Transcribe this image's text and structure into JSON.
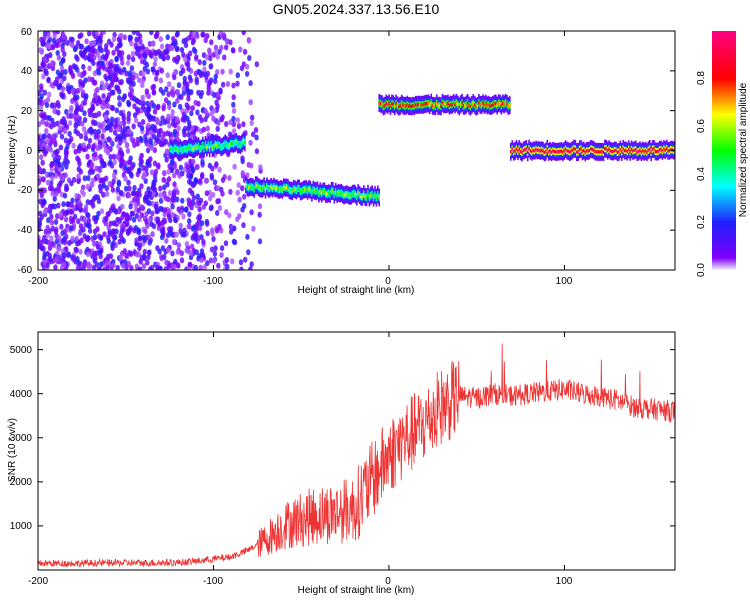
{
  "figure": {
    "title": "GN05.2024.337.13.56.E10"
  },
  "chart_data": [
    {
      "type": "heatmap",
      "xlabel": "Height of straight line (km)",
      "ylabel": "Frequency (Hz)",
      "xlim": [
        -200,
        163
      ],
      "ylim": [
        -60,
        60
      ],
      "xticks": [
        -200,
        -100,
        0,
        100
      ],
      "yticks": [
        -60,
        -40,
        -20,
        0,
        20,
        40,
        60
      ],
      "colorbar": {
        "label": "Normalized spectral amplitude",
        "range": [
          0,
          1
        ],
        "ticks": [
          "0.0",
          "0.2",
          "0.4",
          "0.6",
          "0.8"
        ],
        "colormap": "rainbow (magenta-violet-blue-cyan-green-yellow-red-pink)"
      },
      "segments": [
        {
          "x_start": -200,
          "x_end": -125,
          "freq": 0,
          "note": "broadband noise, amplitude ~0.05-0.2"
        },
        {
          "x_start": -125,
          "x_end": -82,
          "freq_start": 0,
          "freq_end": 4,
          "amplitude": 0.5
        },
        {
          "x_start": -82,
          "x_end": -6,
          "freq_start": -18,
          "freq_end": -23,
          "amplitude": 0.55
        },
        {
          "x_start": -6,
          "x_end": 69,
          "freq": 23,
          "amplitude": 0.75
        },
        {
          "x_start": 69,
          "x_end": 163,
          "freq": 0,
          "amplitude": 0.9
        }
      ],
      "grid": false
    },
    {
      "type": "line",
      "xlabel": "Height of straight line (km)",
      "ylabel": "SNR (10 * v/v)",
      "xlim": [
        -200,
        163
      ],
      "ylim": [
        0,
        5400
      ],
      "xticks": [
        -200,
        -100,
        0,
        100
      ],
      "yticks": [
        1000,
        2000,
        3000,
        4000,
        5000
      ],
      "color": "#ee3333",
      "series": [
        {
          "x": [
            -200,
            -180,
            -160,
            -140,
            -120,
            -110,
            -100,
            -90,
            -80,
            -70,
            -60,
            -50,
            -40,
            -30,
            -20,
            -10,
            0,
            10,
            20,
            30,
            40,
            50,
            60,
            70,
            80,
            90,
            100,
            110,
            120,
            130,
            140,
            150,
            163
          ],
          "values": [
            150,
            150,
            160,
            160,
            170,
            200,
            250,
            300,
            450,
            700,
            1000,
            1150,
            1250,
            1300,
            1400,
            2000,
            2600,
            3000,
            3300,
            3700,
            3950,
            3900,
            4000,
            3950,
            4000,
            4050,
            4100,
            4000,
            3950,
            3850,
            3700,
            3650,
            3600
          ]
        }
      ],
      "grid": false
    }
  ]
}
